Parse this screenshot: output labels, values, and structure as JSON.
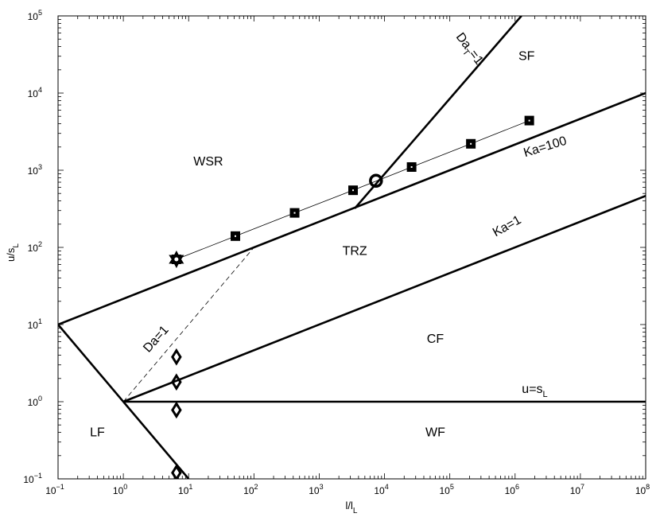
{
  "chart_data": {
    "type": "line",
    "x_scale": "log",
    "y_scale": "log",
    "xlim": [
      0.1,
      100000000
    ],
    "ylim": [
      0.1,
      100000
    ],
    "xlabel": {
      "base": "l/l",
      "sub": "L"
    },
    "ylabel": {
      "base": "u/s",
      "sub": "L"
    },
    "x_ticks": [
      {
        "value": 0.1,
        "base": "10",
        "exp": "−1"
      },
      {
        "value": 1,
        "base": "10",
        "exp": "0"
      },
      {
        "value": 10,
        "base": "10",
        "exp": "1"
      },
      {
        "value": 100,
        "base": "10",
        "exp": "2"
      },
      {
        "value": 1000,
        "base": "10",
        "exp": "3"
      },
      {
        "value": 10000,
        "base": "10",
        "exp": "4"
      },
      {
        "value": 100000,
        "base": "10",
        "exp": "5"
      },
      {
        "value": 1000000,
        "base": "10",
        "exp": "6"
      },
      {
        "value": 10000000,
        "base": "10",
        "exp": "7"
      },
      {
        "value": 100000000,
        "base": "10",
        "exp": "8"
      }
    ],
    "y_ticks": [
      {
        "value": 0.1,
        "base": "10",
        "exp": "−1"
      },
      {
        "value": 1,
        "base": "10",
        "exp": "0"
      },
      {
        "value": 10,
        "base": "10",
        "exp": "1"
      },
      {
        "value": 100,
        "base": "10",
        "exp": "2"
      },
      {
        "value": 1000,
        "base": "10",
        "exp": "3"
      },
      {
        "value": 10000,
        "base": "10",
        "exp": "4"
      },
      {
        "value": 100000,
        "base": "10",
        "exp": "5"
      }
    ],
    "boundary_lines": [
      {
        "id": "ka-100",
        "x": [
          0.1,
          100000000
        ],
        "y": [
          10,
          10000
        ]
      },
      {
        "id": "ka-1",
        "x": [
          1,
          100000000
        ],
        "y": [
          1,
          465
        ]
      },
      {
        "id": "u-equals-sl",
        "x": [
          1,
          100000000
        ],
        "y": [
          1,
          1
        ]
      },
      {
        "id": "lf-boundary",
        "x": [
          0.1,
          10
        ],
        "y": [
          10,
          0.1
        ]
      },
      {
        "id": "dat-1",
        "x": [
          3500,
          1250000
        ],
        "y": [
          320,
          100000
        ]
      }
    ],
    "dashed_lines": [
      {
        "id": "da-1",
        "x": [
          1,
          100
        ],
        "y": [
          1,
          100
        ]
      }
    ],
    "series": [
      {
        "marker": "square",
        "x": [
          6.5,
          52,
          420,
          3300,
          26000,
          210000,
          1650000
        ],
        "y": [
          70,
          140,
          280,
          550,
          1100,
          2200,
          4400
        ]
      }
    ],
    "highlight_points": [
      {
        "marker": "circle",
        "x": 7400,
        "y": 730
      },
      {
        "marker": "star",
        "x": 6.5,
        "y": 70
      }
    ],
    "diamond_points": {
      "x": [
        6.5,
        6.5,
        6.5,
        6.5
      ],
      "y": [
        3.8,
        1.8,
        0.78,
        0.12
      ]
    },
    "region_labels": [
      {
        "text": "SF",
        "x": 1500000,
        "y": 30000
      },
      {
        "text": "WSR",
        "x": 20,
        "y": 1300
      },
      {
        "text": "TRZ",
        "x": 3500,
        "y": 90
      },
      {
        "text": "CF",
        "x": 60000,
        "y": 6.5
      },
      {
        "text": "LF",
        "x": 0.4,
        "y": 0.4
      },
      {
        "text": "WF",
        "x": 60000,
        "y": 0.4
      }
    ],
    "line_labels": [
      {
        "base": "Ka=100",
        "sub": "",
        "x": 3000000,
        "y": 1800,
        "angle": -17
      },
      {
        "base": "Ka=1",
        "sub": "",
        "x": 800000,
        "y": 170,
        "angle": -29
      },
      {
        "base": "Da",
        "sub": "T",
        "rest": "=1",
        "x": 180000,
        "y": 35000,
        "angle": 53
      },
      {
        "base": "Da=1",
        "sub": "",
        "x": 3.5,
        "y": 6,
        "angle": -48
      },
      {
        "base": "u=s",
        "sub": "L",
        "x": 2000000,
        "y": 1.3,
        "angle": 0
      }
    ]
  }
}
